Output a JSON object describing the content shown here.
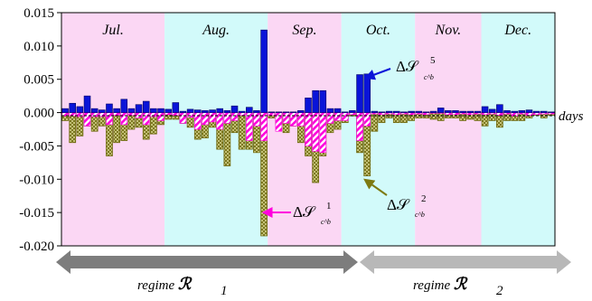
{
  "chart_data": {
    "type": "bar",
    "title": "",
    "x_axis_label": "days",
    "y_ticks": [
      "0.015",
      "0.010",
      "0.005",
      "0.000",
      "-0.005",
      "-0.010",
      "-0.015",
      "-0.020"
    ],
    "y_tick_values": [
      0.015,
      0.01,
      0.005,
      0.0,
      -0.005,
      -0.01,
      -0.015,
      -0.02
    ],
    "ylim": [
      -0.02,
      0.015
    ],
    "grid": false,
    "months": [
      {
        "label": "Jul.",
        "start_day": 0,
        "end_day": 14,
        "color": "#fbd7f4"
      },
      {
        "label": "Aug.",
        "start_day": 14,
        "end_day": 28,
        "color": "#d2fafa"
      },
      {
        "label": "Sep.",
        "start_day": 28,
        "end_day": 38,
        "color": "#fbd7f4"
      },
      {
        "label": "Oct.",
        "start_day": 38,
        "end_day": 48,
        "color": "#d2fafa"
      },
      {
        "label": "Nov.",
        "start_day": 48,
        "end_day": 57,
        "color": "#fbd7f4"
      },
      {
        "label": "Dec.",
        "start_day": 57,
        "end_day": 67,
        "color": "#d2fafa"
      }
    ],
    "series": [
      {
        "key": "s5",
        "color": "#0a14d8",
        "values": [
          0.0006,
          0.0014,
          0.0009,
          0.0025,
          0.0006,
          0.0004,
          0.0013,
          0.0006,
          0.002,
          0.0006,
          0.0012,
          0.0017,
          0.0006,
          0.0006,
          0.0005,
          0.0015,
          0.0002,
          0.0005,
          0.0004,
          0.0003,
          0.0004,
          0.0006,
          0.0003,
          0.001,
          0.0002,
          0.0008,
          0.0003,
          0.0124,
          0.0001,
          0.0001,
          0.0001,
          0.0001,
          0.0003,
          0.0022,
          0.0033,
          0.0033,
          0.0006,
          0.0006,
          0.0001,
          0.0003,
          0.0057,
          0.0058,
          0.0002,
          0.0001,
          0.0002,
          0.0002,
          0.0001,
          0.0002,
          0.0002,
          0.0001,
          0.0002,
          0.0007,
          0.0003,
          0.0003,
          0.0002,
          0.0002,
          0.0002,
          0.0009,
          0.0005,
          0.0012,
          0.0003,
          0.0002,
          0.0003,
          0.0004,
          0.0002,
          0.0002,
          0.0001
        ]
      },
      {
        "key": "s1",
        "color": "#ff00dd",
        "values": [
          -0.0005,
          -0.0005,
          -0.0006,
          -0.002,
          -0.0006,
          -0.0006,
          -0.0018,
          -0.0004,
          -0.0018,
          -0.0004,
          -0.0008,
          -0.0018,
          -0.0006,
          -0.0012,
          -0.0003,
          -0.0004,
          -0.0016,
          -0.0007,
          -0.0025,
          -0.0018,
          -0.0014,
          -0.0025,
          -0.0016,
          -0.0012,
          -0.0004,
          -0.0042,
          -0.002,
          -0.0042,
          -0.0004,
          -0.0028,
          -0.0016,
          -0.002,
          -0.002,
          -0.005,
          -0.0058,
          -0.006,
          -0.0016,
          -0.0012,
          -0.0012,
          -0.0003,
          -0.0042,
          -0.002,
          -0.0002,
          -0.0003,
          -0.0002,
          -0.0003,
          -0.0002,
          -0.0003,
          -0.0002,
          -0.0003,
          -0.0001,
          -0.0001,
          -0.0003,
          -0.0003,
          -0.0002,
          -0.0003,
          -0.0002,
          -0.0003,
          -0.0002,
          -0.0004,
          -0.0002,
          -0.0005,
          -0.0002,
          -0.0004,
          -0.0003,
          -0.0002,
          -0.0002
        ]
      },
      {
        "key": "s2",
        "color": "#8f8a1a",
        "values": [
          -0.0012,
          -0.0045,
          -0.0035,
          -0.002,
          -0.0028,
          -0.002,
          -0.0065,
          -0.0045,
          -0.0042,
          -0.0025,
          -0.0022,
          -0.004,
          -0.0032,
          -0.0018,
          -0.001,
          -0.001,
          -0.0016,
          -0.0022,
          -0.004,
          -0.0038,
          -0.0022,
          -0.0055,
          -0.008,
          -0.003,
          -0.0055,
          -0.0055,
          -0.006,
          -0.0185,
          -0.0008,
          -0.0018,
          -0.003,
          -0.002,
          -0.0045,
          -0.0065,
          -0.0105,
          -0.0065,
          -0.003,
          -0.0025,
          -0.0015,
          -0.0005,
          -0.006,
          -0.0095,
          -0.0028,
          -0.0015,
          -0.0008,
          -0.0015,
          -0.0015,
          -0.0012,
          -0.0008,
          -0.0008,
          -0.001,
          -0.0012,
          -0.0008,
          -0.0008,
          -0.0012,
          -0.001,
          -0.0012,
          -0.002,
          -0.0012,
          -0.0022,
          -0.0012,
          -0.0012,
          -0.0012,
          -0.0008,
          -0.0004,
          -0.0008,
          -0.0004
        ]
      }
    ],
    "annotations": [
      {
        "key": "a5",
        "symbol": "Δ𝒮",
        "superscript": "5",
        "subscript": "c^b"
      },
      {
        "key": "a1",
        "symbol": "Δ𝒮",
        "superscript": "1",
        "subscript": "c^b"
      },
      {
        "key": "a2",
        "symbol": "Δ𝒮",
        "superscript": "2",
        "subscript": "c^b"
      }
    ],
    "regimes": [
      {
        "text": "regime ",
        "symbol": "ℛ",
        "sub": "1",
        "start_day": 0,
        "end_day": 40,
        "color": "#7d7d7d"
      },
      {
        "text": "regime ",
        "symbol": "ℛ",
        "sub": "2",
        "start_day": 40,
        "end_day": 67,
        "color": "#b8b8b8"
      }
    ]
  }
}
